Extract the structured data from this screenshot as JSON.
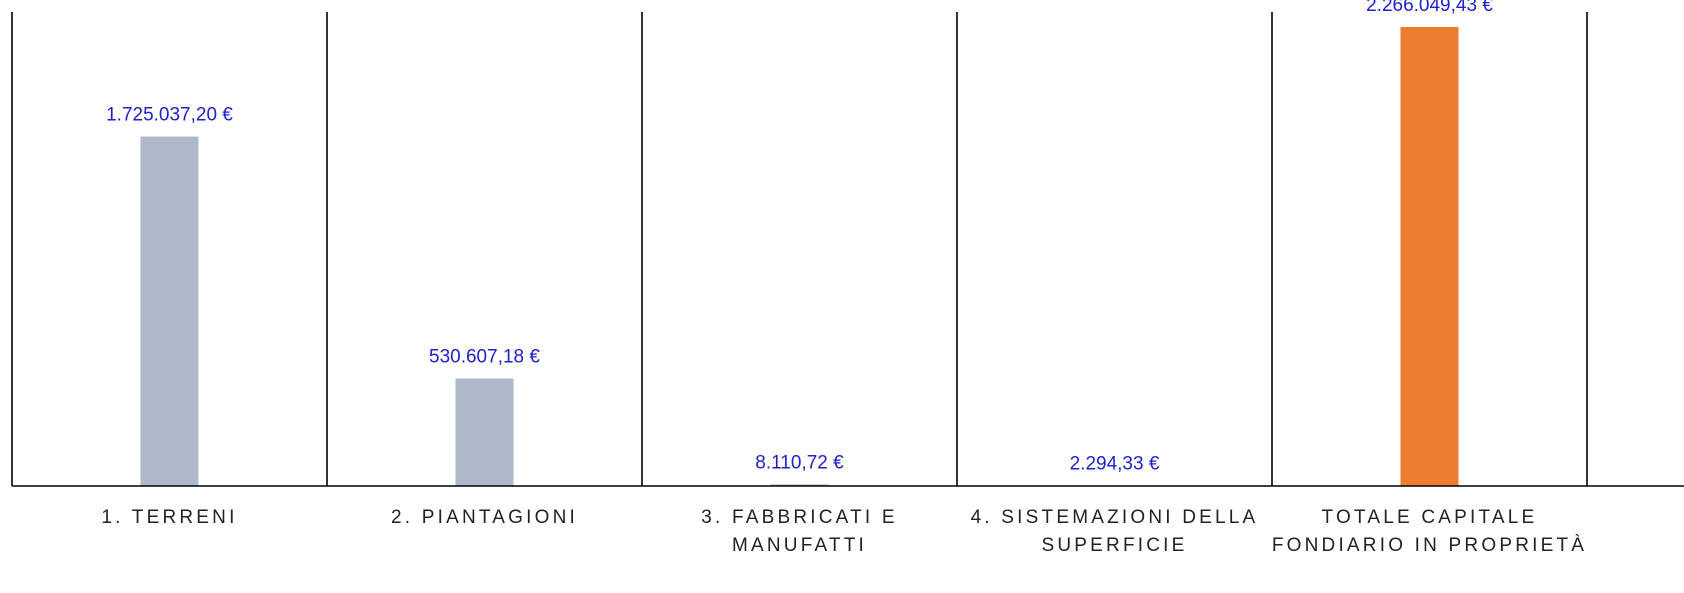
{
  "chart_data": {
    "type": "bar",
    "categories": [
      [
        "1. TERRENI"
      ],
      [
        "2. PIANTAGIONI"
      ],
      [
        "3. FABBRICATI E",
        "MANUFATTI"
      ],
      [
        "4. SISTEMAZIONI DELLA",
        "SUPERFICIE"
      ],
      [
        "TOTALE CAPITALE",
        "FONDIARIO IN PROPRIETÀ"
      ]
    ],
    "values": [
      1725037.2,
      530607.18,
      8110.72,
      2294.33,
      2266049.43
    ],
    "value_labels": [
      "1.725.037,20 €",
      "530.607,18 €",
      "8.110,72 €",
      "2.294,33 €",
      "2.266.049,43 €"
    ],
    "bar_colors": [
      "#adb9ca",
      "#adb9ca",
      "#adb9ca",
      "#adb9ca",
      "#ed7d31"
    ],
    "value_label_color": "#1f1fd0",
    "ylim": [
      0,
      2340000
    ],
    "grid": false,
    "legend": "none"
  }
}
